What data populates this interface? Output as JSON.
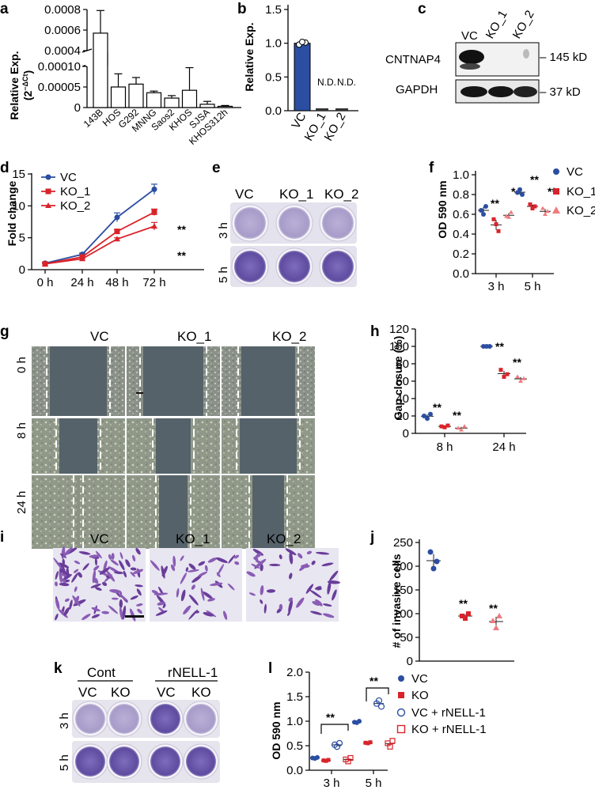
{
  "panels": {
    "a": "a",
    "b": "b",
    "c": "c",
    "d": "d",
    "e": "e",
    "f": "f",
    "g": "g",
    "h": "h",
    "i": "i",
    "j": "j",
    "k": "k",
    "l": "l"
  },
  "panel_a": {
    "ylabel": "Relative Exp.",
    "ylabel2": "(2",
    "ylabel_sup": "−ΔCt",
    "ylabel3": ")",
    "upper_ticks": [
      "0.0008",
      "0.0006",
      "0.0004"
    ],
    "lower_ticks": [
      "0.00010",
      "0.00005",
      "0"
    ]
  },
  "panel_b": {
    "ylabel": "Relative Exp.",
    "ticks": [
      "1.5",
      "1.0",
      "0.5",
      "0.0"
    ],
    "nd1": "N.D.",
    "nd2": "N.D.",
    "color": "#2b4ea2"
  },
  "panel_c": {
    "cols": [
      "VC",
      "KO_1",
      "KO_2"
    ],
    "rows": [
      "CNTNAP4",
      "GAPDH"
    ],
    "sizes": [
      "– 145 kD",
      "– 37 kD"
    ]
  },
  "panel_d": {
    "ylabel": "Fold change",
    "ticks": [
      "15",
      "10",
      "5",
      "0"
    ],
    "sig1": "**",
    "sig2": "**"
  },
  "panel_e": {
    "cols": [
      "VC",
      "KO_1",
      "KO_2"
    ],
    "rows": [
      "3 h",
      "5 h"
    ]
  },
  "panel_f": {
    "ylabel": "OD 590 nm",
    "ticks": [
      "1.0",
      "0.8",
      "0.6",
      "0.4",
      "0.2",
      "0.0"
    ],
    "xticks": [
      "3 h",
      "5 h"
    ],
    "sig": [
      "**",
      "*",
      "**",
      "**"
    ]
  },
  "legend_f": [
    "VC",
    "KO_1",
    "KO_2"
  ],
  "panel_g": {
    "cols": [
      "VC",
      "KO_1",
      "KO_2"
    ],
    "rows": [
      "0 h",
      "8 h",
      "24 h"
    ]
  },
  "panel_h": {
    "ylabel": "Gap closure (%)",
    "ticks": [
      "120",
      "100",
      "80",
      "60",
      "40",
      "20",
      "0"
    ],
    "xticks": [
      "8 h",
      "24 h"
    ],
    "sig": [
      "**",
      "**",
      "**",
      "**"
    ]
  },
  "panel_i": {
    "cols": [
      "VC",
      "KO_1",
      "KO_2"
    ]
  },
  "panel_j": {
    "ylabel": "# of invasive cells",
    "ticks": [
      "250",
      "200",
      "150",
      "100",
      "50",
      "0"
    ],
    "sig": [
      "**",
      "**"
    ]
  },
  "panel_k": {
    "groups": [
      "Cont",
      "rNELL-1"
    ],
    "cols": [
      "VC",
      "KO",
      "VC",
      "KO"
    ],
    "rows": [
      "3 h",
      "5 h"
    ]
  },
  "panel_l": {
    "ylabel": "OD 590 nm",
    "ticks": [
      "2.0",
      "1.5",
      "1.0",
      "0.5",
      "0.0"
    ],
    "xticks": [
      "3 h",
      "5 h"
    ],
    "sig": [
      "**",
      "**"
    ]
  },
  "legend_l": [
    "VC",
    "KO",
    "VC + rNELL-1",
    "KO + rNELL-1"
  ],
  "colors": {
    "vc": "#2b4ea2",
    "ko1": "#d9232a",
    "ko2": "#ef7b7f",
    "plate": "#9a8ec7",
    "plate_dark": "#6a58a8"
  },
  "chart_data": [
    {
      "panel": "a",
      "type": "bar",
      "title": "",
      "ylabel": "Relative Exp. (2^-ΔCt)",
      "categories": [
        "143B",
        "HOS",
        "G292",
        "MNNG",
        "Saos2",
        "KHOS",
        "SJSA",
        "KHOS312h"
      ],
      "values": [
        0.00057,
        5e-05,
        5.7e-05,
        3.6e-05,
        2.3e-05,
        4.2e-05,
        8e-06,
        3e-06
      ],
      "errors": [
        0.00022,
        3.2e-05,
        1.6e-05,
        4e-06,
        6e-06,
        5.5e-05,
        7e-06,
        2e-06
      ],
      "ylim": [
        0,
        0.0008
      ],
      "axis_break": [
        0.0001,
        0.0004
      ]
    },
    {
      "panel": "b",
      "type": "bar",
      "ylabel": "Relative Exp.",
      "categories": [
        "VC",
        "KO_1",
        "KO_2"
      ],
      "values": [
        1.0,
        0.0,
        0.0
      ],
      "ylim": [
        0,
        1.5
      ],
      "annotations": [
        "",
        "N.D.",
        "N.D."
      ]
    },
    {
      "panel": "d",
      "type": "line",
      "ylabel": "Fold change",
      "categories": [
        "0 h",
        "24 h",
        "48 h",
        "72 h"
      ],
      "ylim": [
        0,
        15
      ],
      "series": [
        {
          "name": "VC",
          "values": [
            1.0,
            2.4,
            8.2,
            12.6
          ],
          "errors": [
            0.1,
            0.2,
            0.7,
            0.8
          ]
        },
        {
          "name": "KO_1",
          "values": [
            0.9,
            2.0,
            6.0,
            9.0
          ],
          "errors": [
            0.1,
            0.2,
            0.3,
            0.5
          ]
        },
        {
          "name": "KO_2",
          "values": [
            0.9,
            1.7,
            4.8,
            6.8
          ],
          "errors": [
            0.1,
            0.2,
            0.2,
            0.6
          ]
        }
      ]
    },
    {
      "panel": "f",
      "type": "scatter",
      "ylabel": "OD 590 nm",
      "categories": [
        "3 h",
        "5 h"
      ],
      "ylim": [
        0,
        1.0
      ],
      "series": [
        {
          "name": "VC",
          "values": [
            [
              0.64,
              0.6,
              0.68
            ],
            [
              0.82,
              0.85,
              0.8
            ]
          ]
        },
        {
          "name": "KO_1",
          "values": [
            [
              0.55,
              0.5,
              0.43
            ],
            [
              0.7,
              0.66,
              0.68
            ]
          ]
        },
        {
          "name": "KO_2",
          "values": [
            [
              0.58,
              0.57,
              0.62
            ],
            [
              0.66,
              0.6,
              0.63
            ]
          ]
        }
      ]
    },
    {
      "panel": "h",
      "type": "scatter",
      "ylabel": "Gap closure (%)",
      "categories": [
        "8 h",
        "24 h"
      ],
      "ylim": [
        0,
        120
      ],
      "series": [
        {
          "name": "VC",
          "values": [
            [
              20,
              17,
              22
            ],
            [
              100,
              100,
              100
            ]
          ]
        },
        {
          "name": "KO_1",
          "values": [
            [
              8,
              7,
              9
            ],
            [
              73,
              65,
              68
            ]
          ]
        },
        {
          "name": "KO_2",
          "values": [
            [
              6,
              4,
              8
            ],
            [
              65,
              60,
              63
            ]
          ]
        }
      ]
    },
    {
      "panel": "j",
      "type": "scatter",
      "ylabel": "# of invasive cells",
      "categories": [
        "VC",
        "KO_1",
        "KO_2"
      ],
      "ylim": [
        0,
        250
      ],
      "series": [
        {
          "name": "cells",
          "values": [
            [
              230,
              195,
              210
            ],
            [
              95,
              90,
              100
            ],
            [
              85,
              70,
              95
            ]
          ]
        }
      ]
    },
    {
      "panel": "l",
      "type": "scatter",
      "ylabel": "OD 590 nm",
      "categories": [
        "3 h",
        "5 h"
      ],
      "ylim": [
        0,
        2.0
      ],
      "series": [
        {
          "name": "VC",
          "values": [
            [
              0.25,
              0.24,
              0.26
            ],
            [
              0.98,
              0.97,
              1.0
            ]
          ]
        },
        {
          "name": "KO",
          "values": [
            [
              0.2,
              0.19,
              0.21
            ],
            [
              0.56,
              0.55,
              0.57
            ]
          ]
        },
        {
          "name": "VC + rNELL-1",
          "values": [
            [
              0.52,
              0.48,
              0.55
            ],
            [
              1.36,
              1.42,
              1.3
            ]
          ]
        },
        {
          "name": "KO + rNELL-1",
          "values": [
            [
              0.22,
              0.18,
              0.25
            ],
            [
              0.55,
              0.48,
              0.6
            ]
          ]
        }
      ]
    }
  ]
}
